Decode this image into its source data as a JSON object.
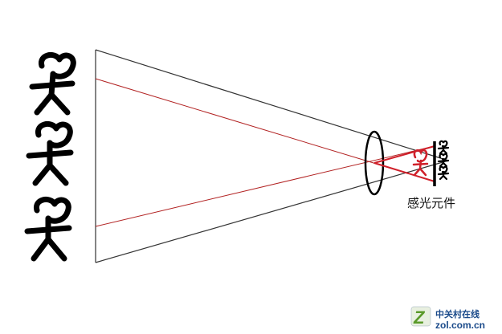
{
  "diagram": {
    "sensor_label": "感光元件",
    "colors": {
      "outline": "#000000",
      "ray": "#b22222",
      "image_figure": "#d0202a",
      "watermark_green": "#5a9a2a",
      "watermark_blue": "#1a4a8a"
    },
    "icons": [
      "stick-figure-icon",
      "lens-icon",
      "sensor-bar-icon"
    ]
  },
  "watermark": {
    "brand": "中关村在线",
    "url": "zol.com.cn",
    "logo_letter": "Z"
  }
}
